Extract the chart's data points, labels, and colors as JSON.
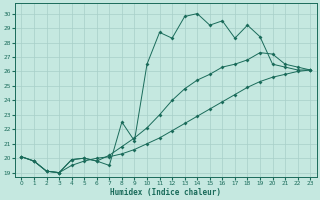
{
  "xlabel": "Humidex (Indice chaleur)",
  "bg_color": "#c5e8e0",
  "line_color": "#1a6b5a",
  "grid_color": "#a8cfc8",
  "xlim": [
    -0.5,
    23.5
  ],
  "ylim": [
    18.7,
    30.7
  ],
  "xticks": [
    0,
    1,
    2,
    3,
    4,
    5,
    6,
    7,
    8,
    9,
    10,
    11,
    12,
    13,
    14,
    15,
    16,
    17,
    18,
    19,
    20,
    21,
    22,
    23
  ],
  "yticks": [
    19,
    20,
    21,
    22,
    23,
    24,
    25,
    26,
    27,
    28,
    29,
    30
  ],
  "line1_x": [
    0,
    1,
    2,
    3,
    4,
    5,
    6,
    7,
    8,
    9,
    10,
    11,
    12,
    13,
    14,
    15,
    16,
    17,
    18,
    19,
    20,
    21,
    22,
    23
  ],
  "line1_y": [
    20.1,
    19.8,
    19.1,
    19.0,
    19.9,
    20.0,
    19.8,
    19.5,
    22.5,
    21.2,
    26.5,
    28.7,
    28.3,
    29.8,
    30.0,
    29.2,
    29.5,
    28.3,
    29.2,
    28.4,
    26.5,
    26.3,
    26.1,
    26.1
  ],
  "line2_x": [
    0,
    1,
    2,
    3,
    4,
    5,
    6,
    7,
    8,
    9,
    10,
    11,
    12,
    13,
    14,
    15,
    16,
    17,
    18,
    19,
    20,
    21,
    22,
    23
  ],
  "line2_y": [
    20.1,
    19.8,
    19.1,
    19.0,
    19.9,
    20.0,
    19.8,
    20.2,
    20.8,
    21.4,
    22.1,
    23.0,
    24.0,
    24.8,
    25.4,
    25.8,
    26.3,
    26.5,
    26.8,
    27.3,
    27.2,
    26.5,
    26.3,
    26.1
  ],
  "line3_x": [
    0,
    1,
    2,
    3,
    4,
    5,
    6,
    7,
    8,
    9,
    10,
    11,
    12,
    13,
    14,
    15,
    16,
    17,
    18,
    19,
    20,
    21,
    22,
    23
  ],
  "line3_y": [
    20.1,
    19.8,
    19.1,
    19.0,
    19.5,
    19.8,
    20.0,
    20.1,
    20.3,
    20.6,
    21.0,
    21.4,
    21.9,
    22.4,
    22.9,
    23.4,
    23.9,
    24.4,
    24.9,
    25.3,
    25.6,
    25.8,
    26.0,
    26.1
  ]
}
